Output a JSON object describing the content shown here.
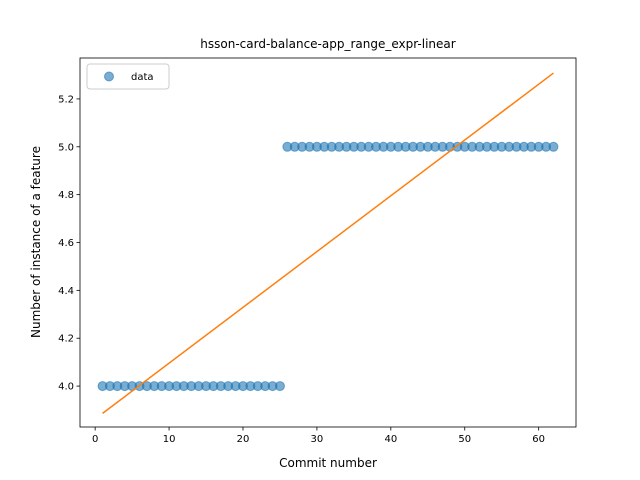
{
  "chart_data": {
    "type": "scatter",
    "title": "hsson-card-balance-app_range_expr-linear",
    "xlabel": "Commit number",
    "ylabel": "Number of instance of a feature",
    "xlim": [
      -2.05,
      65.05
    ],
    "ylim": [
      3.829,
      5.371
    ],
    "xticks": [
      0,
      10,
      20,
      30,
      40,
      50,
      60
    ],
    "yticks": [
      4.0,
      4.2,
      4.4,
      4.6,
      4.8,
      5.0,
      5.2
    ],
    "ytick_labels": [
      "4.0",
      "4.2",
      "4.4",
      "4.6",
      "4.8",
      "5.0",
      "5.2"
    ],
    "grid": false,
    "legend": {
      "position": "top-left",
      "entries": [
        "data"
      ]
    },
    "series": [
      {
        "name": "data",
        "kind": "scatter",
        "color": "#1f77b4",
        "x": [
          1,
          2,
          3,
          4,
          5,
          6,
          7,
          8,
          9,
          10,
          11,
          12,
          13,
          14,
          15,
          16,
          17,
          18,
          19,
          20,
          21,
          22,
          23,
          24,
          25,
          26,
          27,
          28,
          29,
          30,
          31,
          32,
          33,
          34,
          35,
          36,
          37,
          38,
          39,
          40,
          41,
          42,
          43,
          44,
          45,
          46,
          47,
          48,
          49,
          50,
          51,
          52,
          53,
          54,
          55,
          56,
          57,
          58,
          59,
          60,
          61,
          62
        ],
        "y": [
          4,
          4,
          4,
          4,
          4,
          4,
          4,
          4,
          4,
          4,
          4,
          4,
          4,
          4,
          4,
          4,
          4,
          4,
          4,
          4,
          4,
          4,
          4,
          4,
          4,
          5,
          5,
          5,
          5,
          5,
          5,
          5,
          5,
          5,
          5,
          5,
          5,
          5,
          5,
          5,
          5,
          5,
          5,
          5,
          5,
          5,
          5,
          5,
          5,
          5,
          5,
          5,
          5,
          5,
          5,
          5,
          5,
          5,
          5,
          5,
          5,
          5
        ]
      },
      {
        "kind": "line",
        "color": "#ff7f0e",
        "x": [
          1,
          62
        ],
        "y": [
          3.886,
          5.308
        ]
      }
    ]
  }
}
